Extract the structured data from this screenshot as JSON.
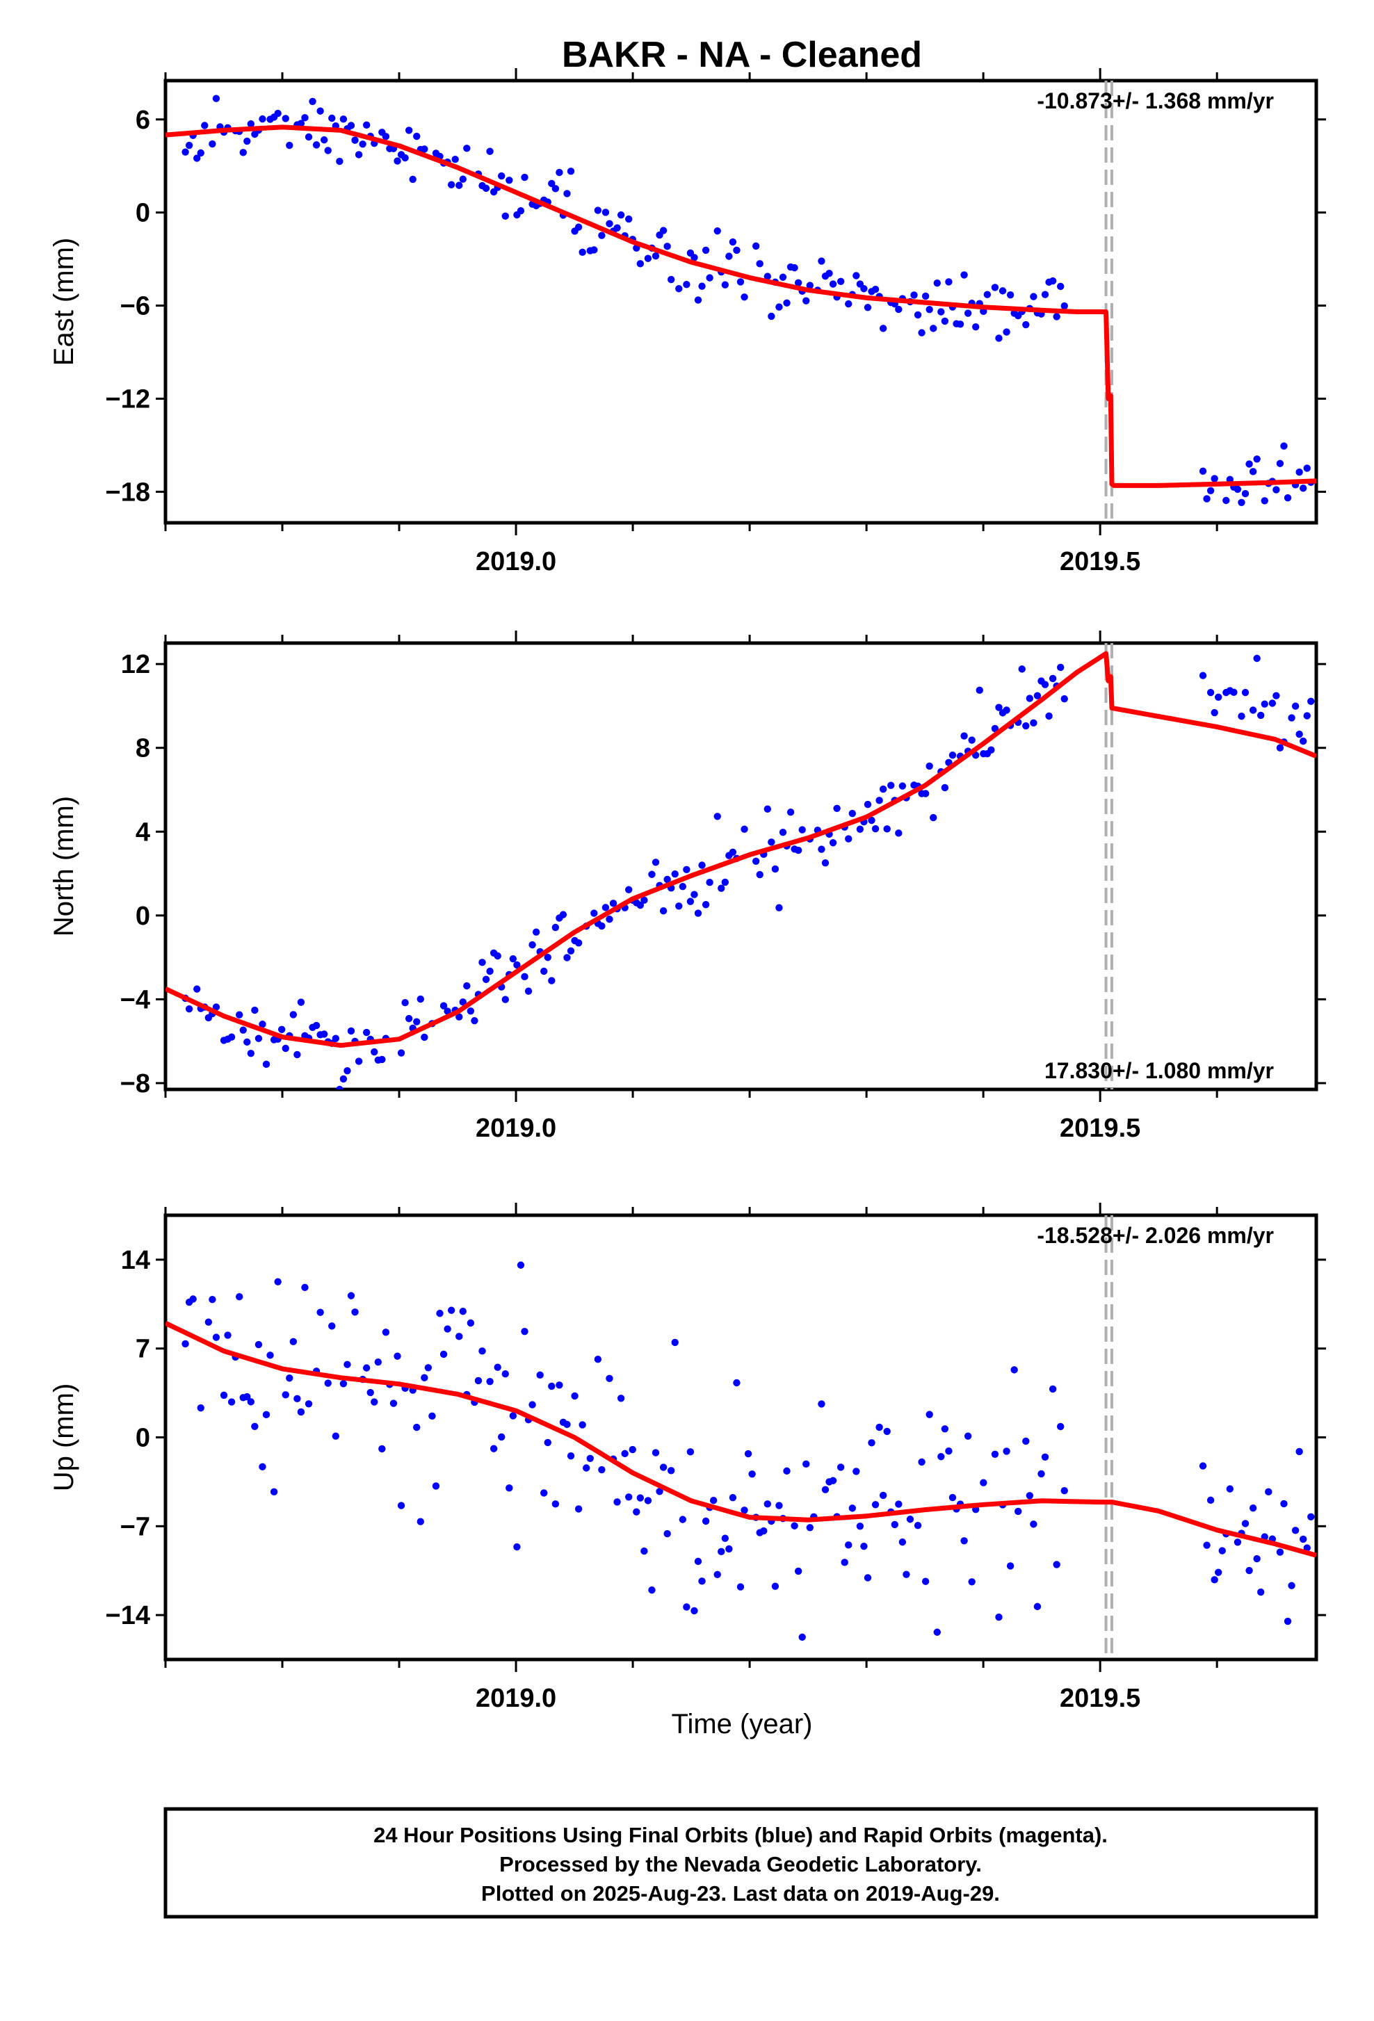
{
  "chart_data": {
    "title": "BAKR  - NA - Cleaned",
    "xlabel": "Time (year)",
    "x_ticks": [
      "2019.0",
      "2019.5"
    ],
    "xlim": [
      2018.7,
      2019.685
    ],
    "offset_epochs": [
      2019.505,
      2019.51
    ],
    "panels": [
      {
        "type": "scatter",
        "ylabel": "East (mm)",
        "ylim": [
          -20,
          8.5
        ],
        "yticks": [
          "6",
          "0",
          "−6",
          "−12",
          "−18"
        ],
        "ytick_values": [
          6,
          0,
          -6,
          -12,
          -18
        ],
        "rate_text": "-10.873+/- 1.368 mm/yr",
        "rate_position": "top-right",
        "series": [
          {
            "name": "Final Orbits",
            "color": "#0000ff",
            "kind": "points",
            "points": []
          },
          {
            "name": "Model fit",
            "color": "#ff0000",
            "kind": "line",
            "x": [
              2018.7,
              2018.75,
              2018.8,
              2018.85,
              2018.9,
              2018.95,
              2019.0,
              2019.05,
              2019.1,
              2019.15,
              2019.2,
              2019.25,
              2019.3,
              2019.35,
              2019.4,
              2019.45,
              2019.48,
              2019.505,
              2019.507,
              2019.509,
              2019.51,
              2019.512,
              2019.55,
              2019.6,
              2019.65,
              2019.685
            ],
            "y": [
              5.0,
              5.3,
              5.5,
              5.3,
              4.3,
              2.9,
              1.3,
              -0.3,
              -1.9,
              -3.2,
              -4.2,
              -5.0,
              -5.5,
              -5.8,
              -6.1,
              -6.3,
              -6.4,
              -6.4,
              -12.0,
              -11.8,
              -17.5,
              -17.6,
              -17.6,
              -17.5,
              -17.4,
              -17.3
            ]
          }
        ]
      },
      {
        "type": "scatter",
        "ylabel": "North (mm)",
        "ylim": [
          -8.3,
          13
        ],
        "yticks": [
          "12",
          "8",
          "4",
          "0",
          "−4",
          "−8"
        ],
        "ytick_values": [
          12,
          8,
          4,
          0,
          -4,
          -8
        ],
        "rate_text": "17.830+/- 1.080 mm/yr",
        "rate_position": "bottom-right",
        "series": [
          {
            "name": "Final Orbits",
            "color": "#0000ff",
            "kind": "points",
            "points": []
          },
          {
            "name": "Model fit",
            "color": "#ff0000",
            "kind": "line",
            "x": [
              2018.7,
              2018.75,
              2018.8,
              2018.85,
              2018.9,
              2018.95,
              2019.0,
              2019.05,
              2019.1,
              2019.15,
              2019.2,
              2019.25,
              2019.3,
              2019.35,
              2019.4,
              2019.45,
              2019.48,
              2019.505,
              2019.507,
              2019.509,
              2019.51,
              2019.55,
              2019.6,
              2019.65,
              2019.685
            ],
            "y": [
              -3.5,
              -4.8,
              -5.8,
              -6.2,
              -5.9,
              -4.6,
              -2.7,
              -0.8,
              0.8,
              1.9,
              2.9,
              3.7,
              4.7,
              6.2,
              8.2,
              10.3,
              11.6,
              12.5,
              11.2,
              11.4,
              9.9,
              9.5,
              9.0,
              8.4,
              7.6
            ]
          }
        ]
      },
      {
        "type": "scatter",
        "ylabel": "Up (mm)",
        "ylim": [
          -17.5,
          17.5
        ],
        "yticks": [
          "14",
          "7",
          "0",
          "−7",
          "−14"
        ],
        "ytick_values": [
          14,
          7,
          0,
          -7,
          -14
        ],
        "rate_text": "-18.528+/- 2.026 mm/yr",
        "rate_position": "top-right",
        "series": [
          {
            "name": "Final Orbits",
            "color": "#0000ff",
            "kind": "points",
            "points": []
          },
          {
            "name": "Model fit",
            "color": "#ff0000",
            "kind": "line",
            "x": [
              2018.7,
              2018.75,
              2018.8,
              2018.85,
              2018.9,
              2018.95,
              2019.0,
              2019.05,
              2019.1,
              2019.15,
              2019.2,
              2019.25,
              2019.3,
              2019.35,
              2019.4,
              2019.45,
              2019.5,
              2019.51,
              2019.55,
              2019.6,
              2019.65,
              2019.685
            ],
            "y": [
              9.0,
              6.8,
              5.4,
              4.7,
              4.2,
              3.4,
              2.1,
              0.0,
              -2.8,
              -5.0,
              -6.3,
              -6.5,
              -6.2,
              -5.7,
              -5.3,
              -5.0,
              -5.1,
              -5.1,
              -5.8,
              -7.3,
              -8.4,
              -9.3
            ]
          }
        ]
      }
    ]
  },
  "footer": {
    "line1": "24 Hour Positions Using Final Orbits (blue) and Rapid Orbits (magenta).",
    "line2": "Processed by the Nevada Geodetic Laboratory.",
    "line3": "Plotted on 2025-Aug-23. Last data on 2019-Aug-29."
  }
}
